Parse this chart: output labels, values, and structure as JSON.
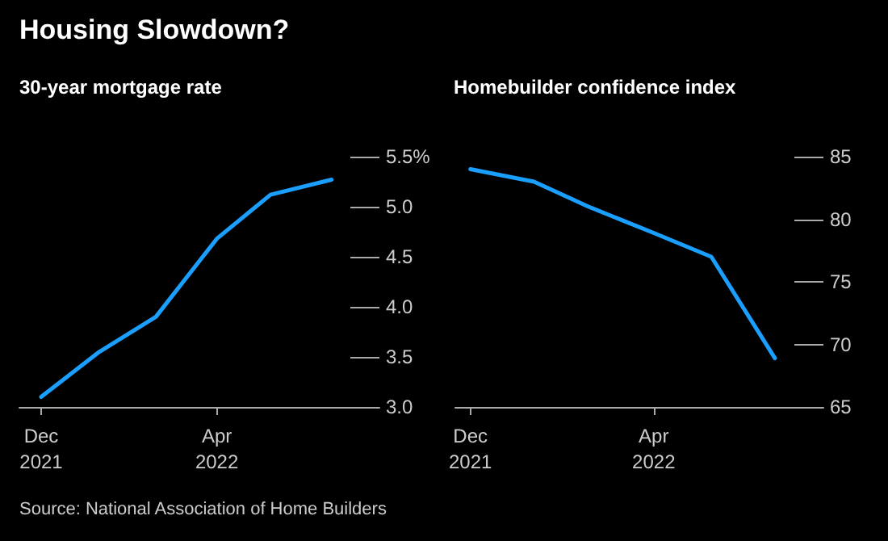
{
  "chart_data": [
    {
      "type": "line",
      "title": "Housing Slowdown?",
      "subtitle": "30-year mortgage rate",
      "x": [
        "2021-12-01",
        "2022-01-10",
        "2022-02-18",
        "2022-04-01",
        "2022-05-08",
        "2022-06-19"
      ],
      "values": [
        3.1,
        3.55,
        3.9,
        4.68,
        5.12,
        5.27
      ],
      "color": "#1a9fff",
      "marker": "none",
      "line_style": "solid",
      "xlim": [
        "2021-11-16",
        "2022-07-22"
      ],
      "xticks": [
        {
          "value": "2021-12-01",
          "label": "Dec\n2021"
        },
        {
          "value": "2022-04-01",
          "label": "Apr\n2022"
        }
      ],
      "ylim": [
        3.0,
        5.5
      ],
      "yticks": [
        {
          "value": 3,
          "label": "3.0"
        },
        {
          "value": 3.5,
          "label": "3.5"
        },
        {
          "value": 4,
          "label": "4.0"
        },
        {
          "value": 4.5,
          "label": "4.5"
        },
        {
          "value": 5,
          "label": "5.0"
        },
        {
          "value": 5.5,
          "label": "5.5%"
        }
      ],
      "annotations": [
        "Source: National Association of Home Builders"
      ]
    },
    {
      "type": "line",
      "subtitle": "Homebuilder confidence index",
      "x": [
        "2021-12-01",
        "2022-01-12",
        "2022-02-17",
        "2022-04-01",
        "2022-05-09",
        "2022-06-20"
      ],
      "values": [
        84,
        83,
        81,
        78.9,
        77,
        68.9
      ],
      "color": "#1a9fff",
      "marker": "none",
      "line_style": "solid",
      "xlim": [
        "2021-11-21",
        "2022-07-22"
      ],
      "xticks": [
        {
          "value": "2021-12-01",
          "label": "Dec\n2021"
        },
        {
          "value": "2022-04-01",
          "label": "Apr\n2022"
        }
      ],
      "ylim": [
        65,
        85
      ],
      "yticks": [
        65,
        70,
        75,
        80,
        85
      ]
    }
  ]
}
